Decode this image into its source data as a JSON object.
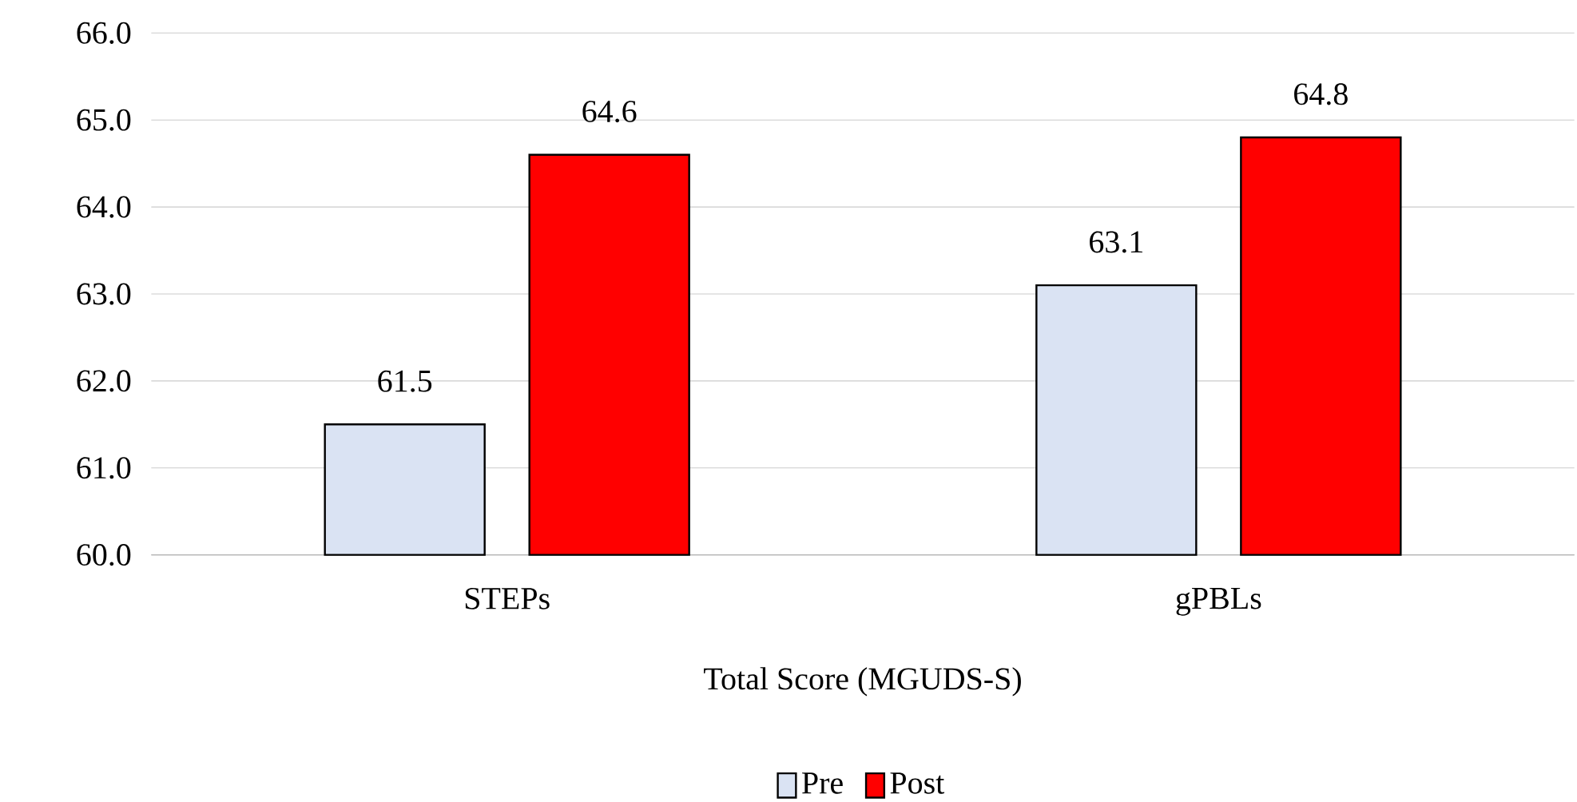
{
  "chart_data": {
    "type": "bar",
    "xlabel": "Total Score (MGUDS-S)",
    "categories": [
      "STEPs",
      "gPBLs"
    ],
    "series": [
      {
        "name": "Pre",
        "color": "#dae3f3",
        "values": [
          61.5,
          63.1
        ]
      },
      {
        "name": "Post",
        "color": "#ff0000",
        "values": [
          64.6,
          64.8
        ]
      }
    ],
    "ylim": [
      60,
      66
    ],
    "yticks": [
      {
        "value": 60,
        "label": "60.0"
      },
      {
        "value": 61,
        "label": "61.0"
      },
      {
        "value": 62,
        "label": "62.0"
      },
      {
        "value": 63,
        "label": "63.0"
      },
      {
        "value": 64,
        "label": "64.0"
      },
      {
        "value": 65,
        "label": "65.0"
      },
      {
        "value": 66,
        "label": "66.0"
      }
    ],
    "grid": "y",
    "legend": "bottom",
    "data_labels": true
  }
}
